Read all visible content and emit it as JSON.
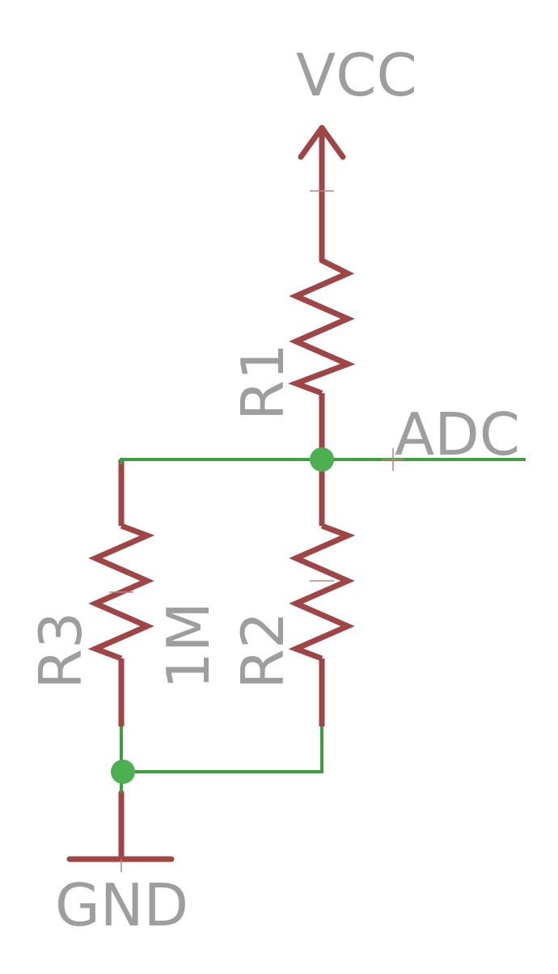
{
  "labels": {
    "vcc": "VCC",
    "adc": "ADC",
    "gnd": "GND",
    "r1": "R1",
    "r2": "R2",
    "r3": "R3",
    "r3_value": "1M"
  },
  "colors": {
    "component": "#a04545",
    "net": "#3f9e3f",
    "junction": "#4caf50",
    "label": "#9e9e9e",
    "cross": "#c08080"
  }
}
